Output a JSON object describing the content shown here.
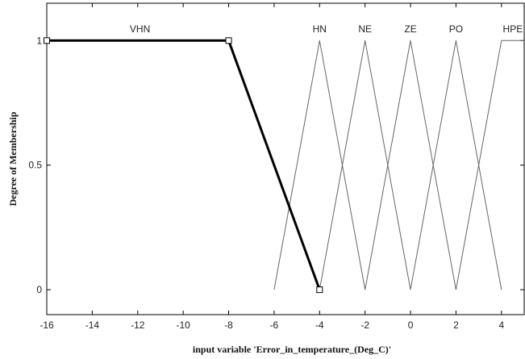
{
  "chart_data": {
    "type": "line",
    "title": "",
    "xlabel": "input variable 'Error_in_temperature_(Deg_C)'",
    "ylabel": "Degree of Membership",
    "xlim": [
      -16,
      5
    ],
    "ylim": [
      -0.1,
      1.15
    ],
    "xticks": [
      -16,
      -14,
      -12,
      -10,
      -8,
      -6,
      -4,
      -2,
      0,
      2,
      4
    ],
    "yticks": [
      0,
      0.5,
      1
    ],
    "ytick_labels": [
      "0",
      "0.5",
      "1"
    ],
    "grid": false,
    "colors": {
      "line": "#666666",
      "highlight": "#000000",
      "frame": "#000000"
    },
    "series": [
      {
        "name": "VHN",
        "x": [
          -16,
          -8,
          -4
        ],
        "y": [
          1,
          1,
          0
        ],
        "highlighted": true
      },
      {
        "name": "HN",
        "x": [
          -6,
          -4,
          -2
        ],
        "y": [
          0,
          1,
          0
        ]
      },
      {
        "name": "NE",
        "x": [
          -4,
          -2,
          0
        ],
        "y": [
          0,
          1,
          0
        ]
      },
      {
        "name": "ZE",
        "x": [
          -2,
          0,
          2
        ],
        "y": [
          0,
          1,
          0
        ]
      },
      {
        "name": "PO",
        "x": [
          0,
          2,
          4
        ],
        "y": [
          0,
          1,
          0
        ]
      },
      {
        "name": "HPE",
        "x": [
          2,
          4,
          5
        ],
        "y": [
          0,
          1,
          1
        ]
      }
    ],
    "mf_labels": [
      {
        "text": "VHN",
        "x": -11.9
      },
      {
        "text": "HN",
        "x": -4
      },
      {
        "text": "NE",
        "x": -2
      },
      {
        "text": "ZE",
        "x": 0
      },
      {
        "text": "PO",
        "x": 2
      },
      {
        "text": "HPE",
        "x": 4.5
      }
    ]
  }
}
